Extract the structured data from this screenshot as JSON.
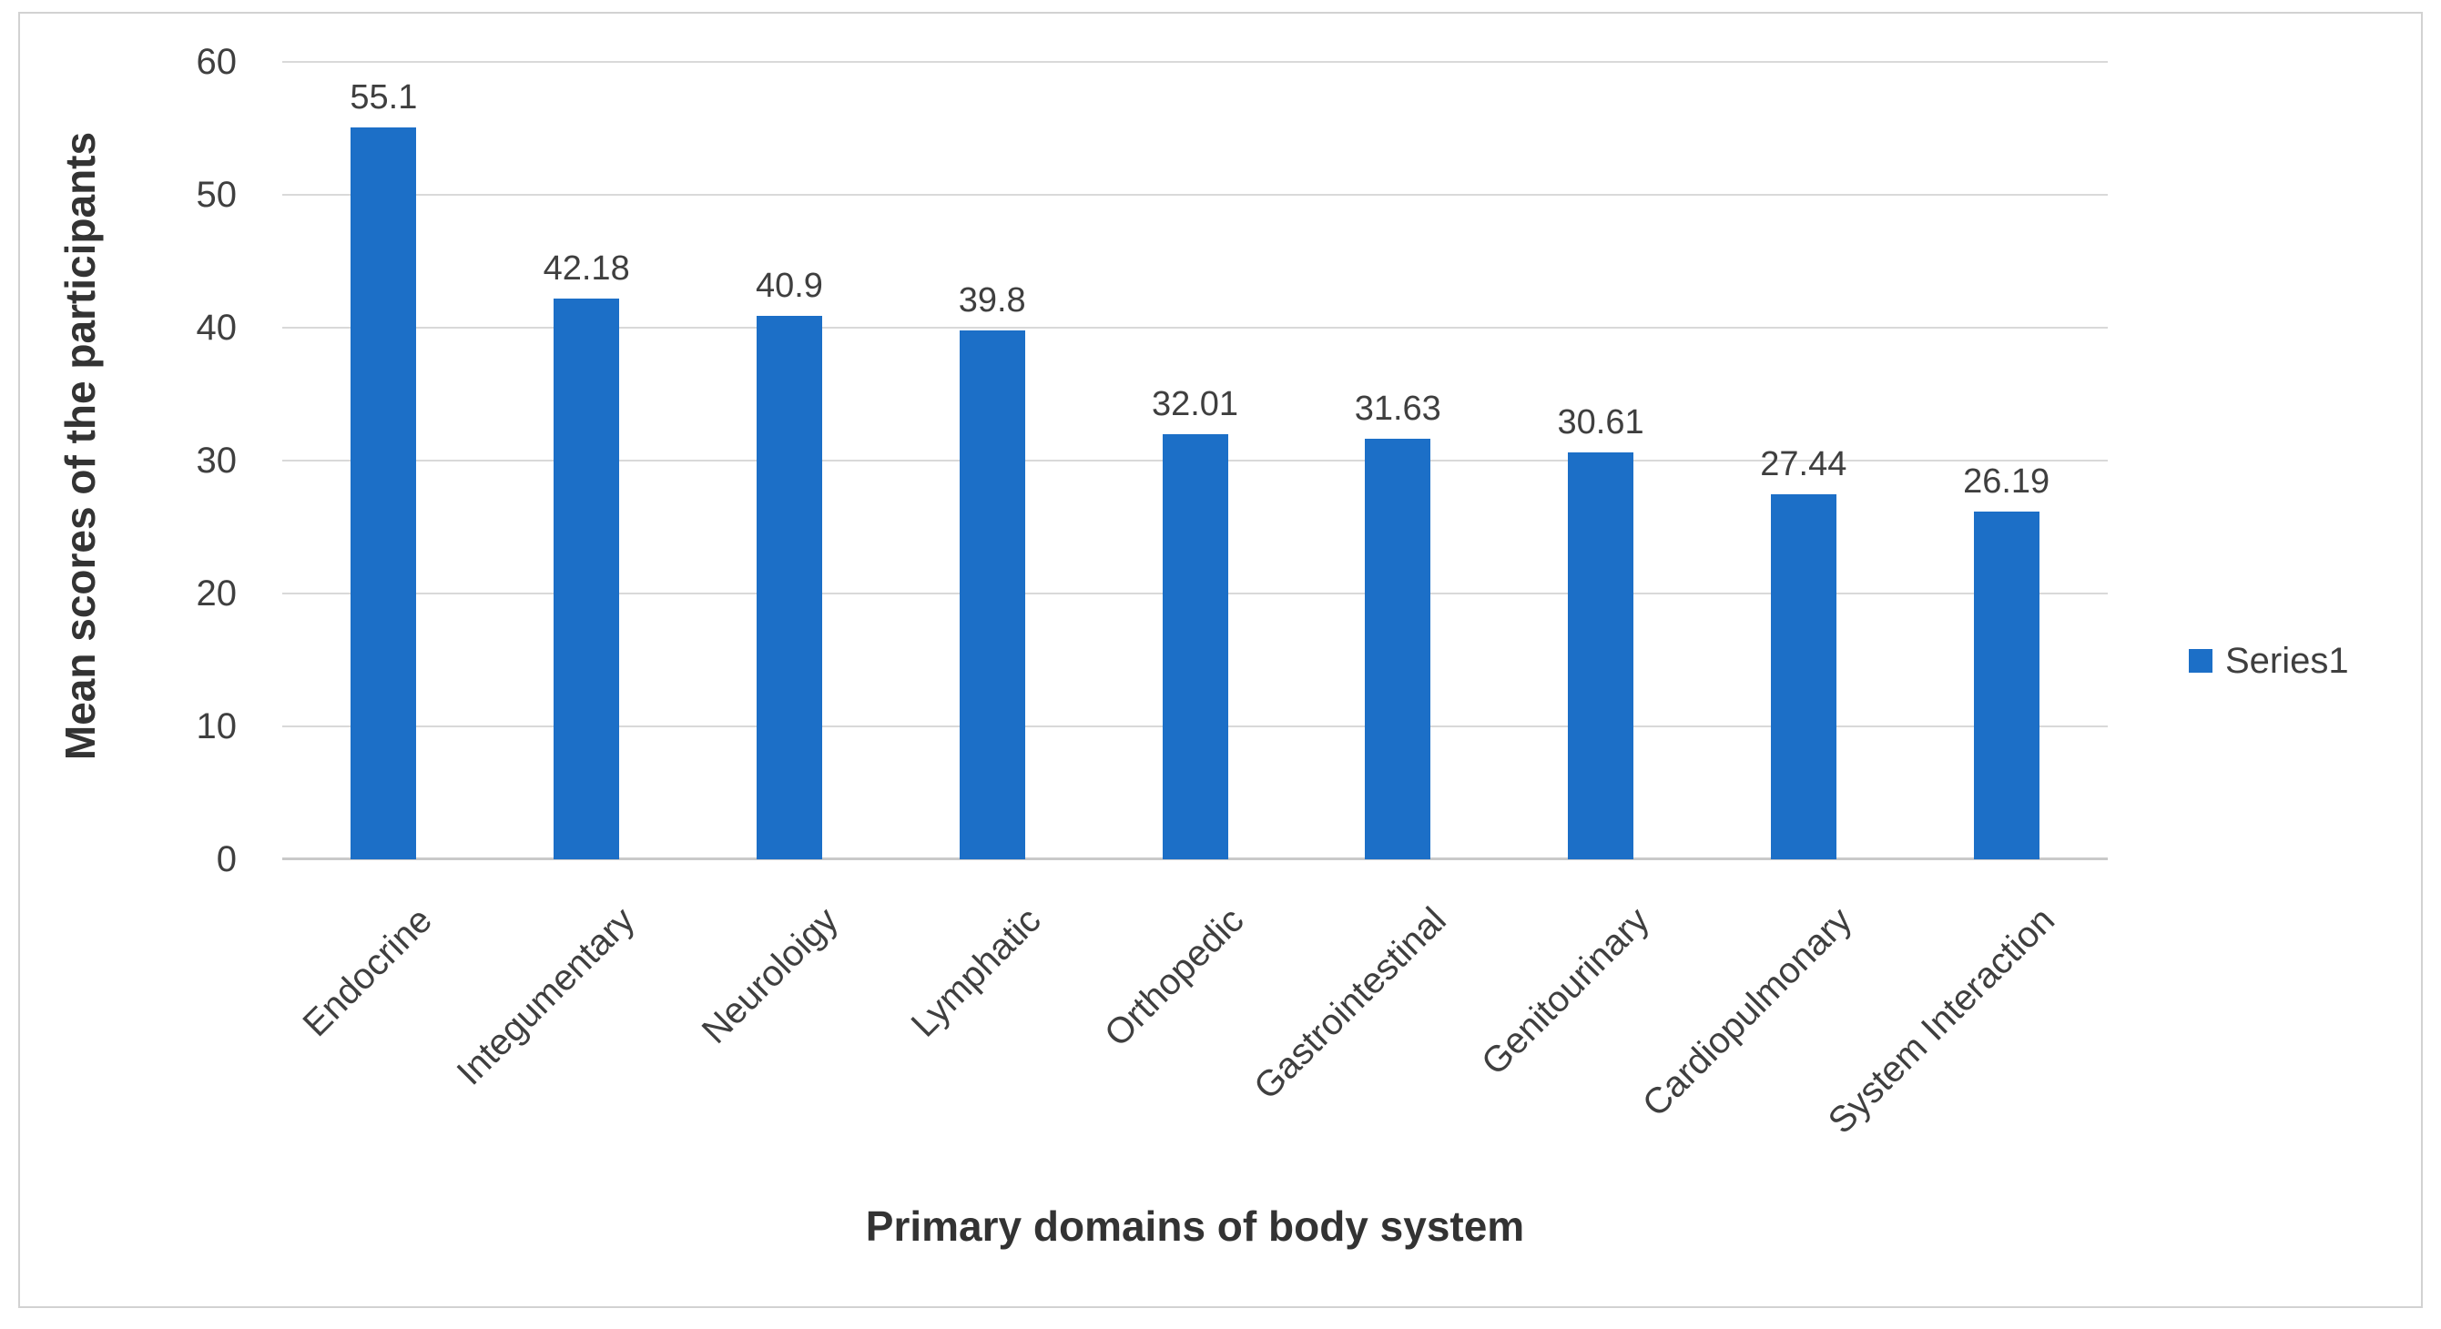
{
  "chart_data": {
    "type": "bar",
    "title": "",
    "categories": [
      "Endocrine",
      "Integumentary",
      "Neuroloigy",
      "Lymphatic",
      "Orthopedic",
      "Gastrointestinal",
      "Genitourinary",
      "Cardiopulmonary",
      "System Interaction"
    ],
    "values": [
      55.1,
      42.18,
      40.9,
      39.8,
      32.01,
      31.63,
      30.61,
      27.44,
      26.19
    ],
    "data_labels": [
      "55.1",
      "42.18",
      "40.9",
      "39.8",
      "32.01",
      "31.63",
      "30.61",
      "27.44",
      "26.19"
    ],
    "xlabel": "Primary domains of body system",
    "ylabel": "Mean scores of the participants",
    "ylim": [
      0,
      60
    ],
    "yticks": [
      0,
      10,
      20,
      30,
      40,
      50,
      60
    ],
    "grid": true,
    "show_data_labels": true,
    "legend": {
      "position": "right",
      "entries": [
        "Series1"
      ]
    }
  },
  "colors": {
    "bar": "#1C6FC7",
    "gridline": "#D9D9D9",
    "baseline": "#C9C9C9",
    "tick_text": "#3F3F3F",
    "label_text": "#3F3F3F",
    "title_text": "#333333",
    "border": "#D2D2D2"
  }
}
